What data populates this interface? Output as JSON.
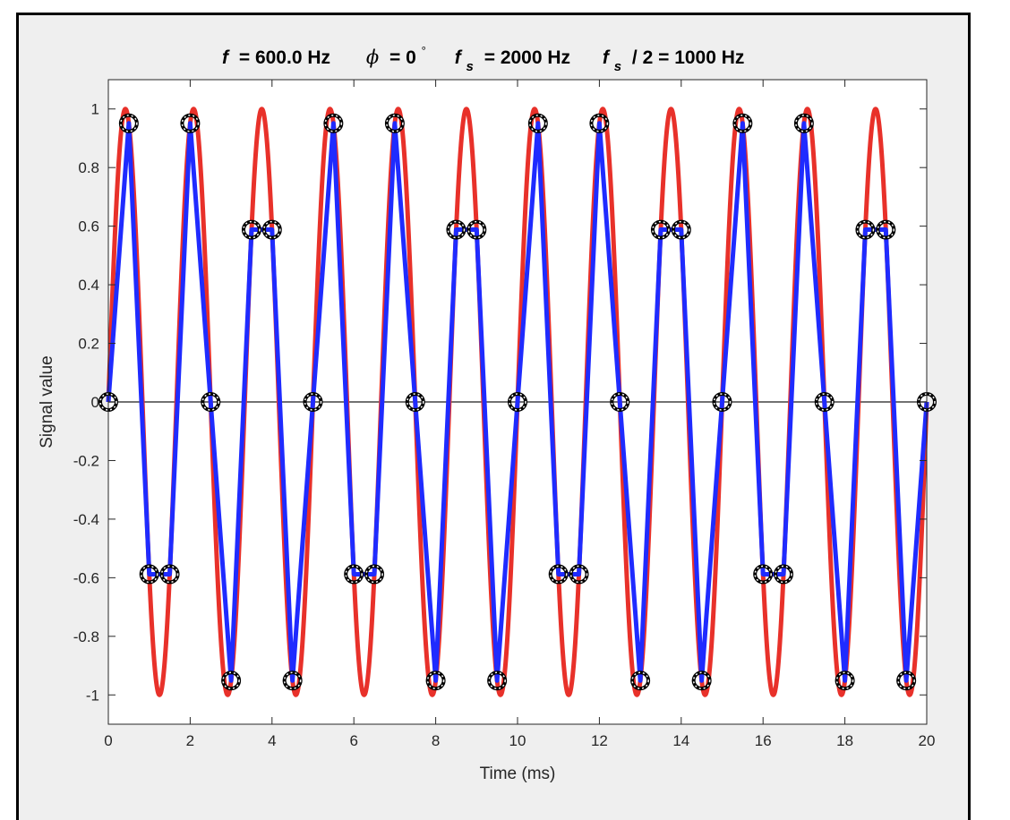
{
  "chart_data": {
    "type": "line",
    "title": {
      "f_label": "f",
      "f_value": "= 600.0 Hz",
      "phi_label": "ϕ",
      "phi_value": "= 0",
      "phi_superscript": "°",
      "fs_label": "f",
      "fs_sub": "s",
      "fs_value": "= 2000 Hz",
      "nyq_label": "f",
      "nyq_sub": "s",
      "nyq_value": "/ 2 = 1000 Hz"
    },
    "xlabel": "Time (ms)",
    "ylabel": "Signal value",
    "xlim": [
      0,
      20
    ],
    "ylim": [
      -1.1,
      1.1
    ],
    "xticks": [
      0,
      2,
      4,
      6,
      8,
      10,
      12,
      14,
      16,
      18,
      20
    ],
    "yticks": [
      -1,
      -0.8,
      -0.6,
      -0.4,
      -0.2,
      0,
      0.2,
      0.4,
      0.6,
      0.8,
      1
    ],
    "grid": false,
    "zero_line": true,
    "frequency_hz": 600.0,
    "phase_deg": 0,
    "sample_rate_hz": 2000,
    "continuous_signal": {
      "color": "#e8312a",
      "function": "sin(2*pi*0.6*t)"
    },
    "sampled_series": {
      "color": "#1f2bff",
      "marker_color": "#000000",
      "x": [
        0,
        0.5,
        1,
        1.5,
        2,
        2.5,
        3,
        3.5,
        4,
        4.5,
        5,
        5.5,
        6,
        6.5,
        7,
        7.5,
        8,
        8.5,
        9,
        9.5,
        10,
        10.5,
        11,
        11.5,
        12,
        12.5,
        13,
        13.5,
        14,
        14.5,
        15,
        15.5,
        16,
        16.5,
        17,
        17.5,
        18,
        18.5,
        19,
        19.5,
        20
      ],
      "values": [
        0,
        0.951,
        -0.588,
        -0.588,
        0.951,
        0,
        -0.951,
        0.588,
        0.588,
        -0.951,
        0,
        0.951,
        -0.588,
        -0.588,
        0.951,
        0,
        -0.951,
        0.588,
        0.588,
        -0.951,
        0,
        0.951,
        -0.588,
        -0.588,
        0.951,
        0,
        -0.951,
        0.588,
        0.588,
        -0.951,
        0,
        0.951,
        -0.588,
        -0.588,
        0.951,
        0,
        -0.951,
        0.588,
        0.588,
        -0.951,
        0
      ]
    }
  }
}
